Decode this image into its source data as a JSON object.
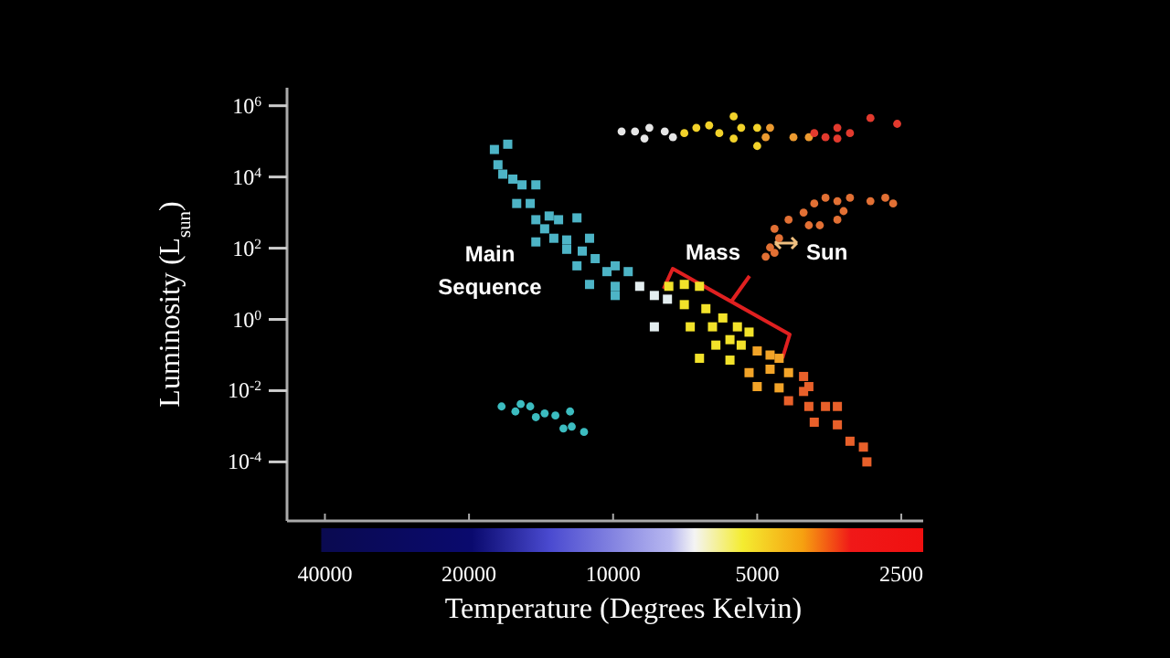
{
  "chart_data": {
    "type": "scatter",
    "xlabel": "Temperature (Degrees Kelvin)",
    "ylabel": "Luminosity (L$_{sun}$)",
    "log": "xy",
    "xlim": [
      48000,
      2250
    ],
    "ylim": [
      2.2e-06,
      3200000.0
    ],
    "xticks": [
      40000,
      20000,
      10000,
      5000,
      2500
    ],
    "yticks": [
      {
        "value": 1000000.0,
        "label": "10$^{6}$"
      },
      {
        "value": 10000.0,
        "label": "10$^{4}$"
      },
      {
        "value": 100,
        "label": "10$^{2}$"
      },
      {
        "value": 1,
        "label": "10$^{0}$"
      },
      {
        "value": 0.01,
        "label": "10$^{-2}$"
      },
      {
        "value": 0.0001,
        "label": "10$^{-4}$"
      }
    ],
    "annotations": [
      "Main Sequence",
      "Mass",
      "Sun"
    ],
    "series": [
      {
        "color": "#4db4c6",
        "marker": "square",
        "x": [
          17700,
          16600,
          17400,
          17000,
          16200,
          15500,
          14500,
          15900,
          14900,
          14500,
          13600,
          13000,
          11900,
          13900,
          13300,
          12500,
          11200,
          14500,
          12500,
          11600,
          10900,
          11900,
          10300,
          11200,
          9900,
          9900,
          9900,
          9300
        ],
        "values": [
          59000.0,
          83000.0,
          22000.0,
          12000.0,
          8700,
          6000,
          6000,
          1800,
          1800,
          630,
          800,
          630,
          710,
          350,
          190,
          170,
          190,
          150,
          93,
          83,
          51,
          32,
          22,
          9.6,
          8.5,
          4.7,
          32,
          22
        ]
      },
      {
        "color": "#e4eef0",
        "marker": "square",
        "x": [
          8800,
          8200,
          7700,
          8200
        ],
        "values": [
          8.5,
          4.7,
          3.7,
          0.62
        ]
      },
      {
        "color": "#f2e22a",
        "marker": "square",
        "x": [
          7650,
          7100,
          6600,
          7100,
          6400,
          6900,
          5900,
          6200,
          5500,
          5700,
          5200,
          5400,
          6100,
          6600,
          5700
        ],
        "values": [
          8.5,
          9.6,
          8.5,
          2.6,
          2.0,
          0.62,
          1.1,
          0.62,
          0.62,
          0.27,
          0.44,
          0.19,
          0.19,
          0.081,
          0.072
        ]
      },
      {
        "color": "#f2a428",
        "marker": "square",
        "x": [
          5000,
          4700,
          4500,
          5200,
          4700,
          4300,
          5000,
          4500
        ],
        "values": [
          0.13,
          0.1,
          0.081,
          0.032,
          0.04,
          0.032,
          0.013,
          0.012
        ]
      },
      {
        "color": "#e8602a",
        "marker": "square",
        "x": [
          4000,
          4000,
          3900,
          4300,
          3900,
          3600,
          3400,
          3800,
          3400,
          3200,
          3000,
          2950
        ],
        "values": [
          0.025,
          0.0095,
          0.013,
          0.0052,
          0.0036,
          0.0036,
          0.0036,
          0.0013,
          0.0011,
          0.00038,
          0.00026,
          0.0001
        ]
      },
      {
        "color": "#e27034",
        "marker": "circle",
        "x": [
          4500,
          4600,
          4300,
          4000,
          3800,
          3600,
          3400,
          3200,
          2900,
          2700,
          2600,
          3900,
          3700,
          3400,
          3300,
          4800,
          4600,
          4700
        ],
        "values": [
          190,
          350,
          630,
          1000,
          1800,
          2600,
          2100,
          2600,
          2100,
          2600,
          1800,
          440,
          440,
          630,
          1100,
          58,
          74,
          105
        ]
      },
      {
        "color": "#e6e6e6",
        "marker": "circle",
        "x": [
          9600,
          9000,
          8600,
          8400,
          7800,
          7500
        ],
        "values": [
          190000.0,
          190000.0,
          120000.0,
          240000.0,
          190000.0,
          130000.0
        ]
      },
      {
        "color": "#f2d22a",
        "marker": "circle",
        "x": [
          7100,
          6700,
          6300,
          6000,
          5600,
          5600,
          5400,
          5000,
          5000
        ],
        "values": [
          170000.0,
          240000.0,
          280000.0,
          170000.0,
          500000.0,
          120000.0,
          240000.0,
          240000.0,
          74000.0
        ]
      },
      {
        "color": "#ec9a30",
        "marker": "circle",
        "x": [
          4800,
          4700,
          4200,
          3900
        ],
        "values": [
          130000.0,
          240000.0,
          130000.0,
          130000.0
        ]
      },
      {
        "color": "#e23a2e",
        "marker": "circle",
        "x": [
          3800,
          3600,
          3400,
          3400,
          3200,
          2900,
          2550
        ],
        "values": [
          170000.0,
          130000.0,
          240000.0,
          120000.0,
          170000.0,
          450000.0,
          310000.0
        ]
      },
      {
        "color": "#3cbcc0",
        "marker": "circle",
        "x": [
          17100,
          16000,
          15600,
          14900,
          14500,
          13900,
          13200,
          12300,
          12700,
          12200,
          11500
        ],
        "values": [
          0.0036,
          0.0026,
          0.0042,
          0.0036,
          0.0018,
          0.0023,
          0.002,
          0.0026,
          0.00087,
          0.00098,
          0.00069
        ]
      }
    ]
  }
}
